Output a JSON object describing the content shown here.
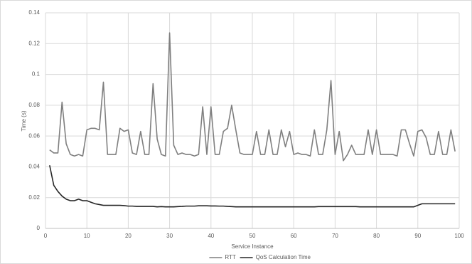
{
  "chart_data": {
    "type": "line",
    "x_label": "Service Instance",
    "y_label": "Time (s)",
    "x": [
      1,
      2,
      3,
      4,
      5,
      6,
      7,
      8,
      9,
      10,
      11,
      12,
      13,
      14,
      15,
      16,
      17,
      18,
      19,
      20,
      21,
      22,
      23,
      24,
      25,
      26,
      27,
      28,
      29,
      30,
      31,
      32,
      33,
      34,
      35,
      36,
      37,
      38,
      39,
      40,
      41,
      42,
      43,
      44,
      45,
      46,
      47,
      48,
      49,
      50,
      51,
      52,
      53,
      54,
      55,
      56,
      57,
      58,
      59,
      60,
      61,
      62,
      63,
      64,
      65,
      66,
      67,
      68,
      69,
      70,
      71,
      72,
      73,
      74,
      75,
      76,
      77,
      78,
      79,
      80,
      81,
      82,
      83,
      84,
      85,
      86,
      87,
      88,
      89,
      90,
      91,
      92,
      93,
      94,
      95,
      96,
      97,
      98,
      99
    ],
    "series": [
      {
        "name": "RTT",
        "color": "#7f7f7f",
        "values": [
          0.051,
          0.049,
          0.049,
          0.082,
          0.055,
          0.048,
          0.047,
          0.048,
          0.047,
          0.064,
          0.065,
          0.065,
          0.064,
          0.095,
          0.048,
          0.048,
          0.048,
          0.065,
          0.063,
          0.064,
          0.049,
          0.048,
          0.063,
          0.048,
          0.048,
          0.094,
          0.058,
          0.048,
          0.047,
          0.127,
          0.054,
          0.048,
          0.049,
          0.048,
          0.048,
          0.047,
          0.048,
          0.079,
          0.048,
          0.079,
          0.048,
          0.048,
          0.063,
          0.065,
          0.08,
          0.064,
          0.049,
          0.048,
          0.048,
          0.048,
          0.063,
          0.048,
          0.048,
          0.064,
          0.048,
          0.048,
          0.064,
          0.053,
          0.063,
          0.048,
          0.049,
          0.048,
          0.048,
          0.047,
          0.064,
          0.048,
          0.048,
          0.064,
          0.096,
          0.048,
          0.063,
          0.044,
          0.048,
          0.054,
          0.048,
          0.048,
          0.048,
          0.064,
          0.048,
          0.064,
          0.048,
          0.048,
          0.048,
          0.048,
          0.047,
          0.064,
          0.064,
          0.055,
          0.047,
          0.063,
          0.064,
          0.059,
          0.048,
          0.048,
          0.063,
          0.048,
          0.048,
          0.064,
          0.05
        ]
      },
      {
        "name": "QoS Calculation Time",
        "color": "#262626",
        "values": [
          0.041,
          0.028,
          0.024,
          0.021,
          0.019,
          0.018,
          0.018,
          0.019,
          0.018,
          0.018,
          0.017,
          0.016,
          0.0155,
          0.015,
          0.015,
          0.015,
          0.015,
          0.015,
          0.0148,
          0.0145,
          0.0145,
          0.0143,
          0.0143,
          0.0143,
          0.0143,
          0.0143,
          0.014,
          0.0142,
          0.014,
          0.014,
          0.014,
          0.0142,
          0.0143,
          0.0145,
          0.0145,
          0.0145,
          0.0147,
          0.0147,
          0.0147,
          0.0146,
          0.0146,
          0.0145,
          0.0145,
          0.0143,
          0.0142,
          0.014,
          0.014,
          0.014,
          0.014,
          0.014,
          0.014,
          0.014,
          0.014,
          0.014,
          0.014,
          0.014,
          0.014,
          0.014,
          0.014,
          0.014,
          0.014,
          0.014,
          0.014,
          0.014,
          0.014,
          0.0142,
          0.0142,
          0.0142,
          0.0142,
          0.0142,
          0.0142,
          0.0142,
          0.0142,
          0.0142,
          0.0142,
          0.014,
          0.014,
          0.014,
          0.014,
          0.014,
          0.014,
          0.014,
          0.014,
          0.014,
          0.014,
          0.014,
          0.014,
          0.014,
          0.014,
          0.015,
          0.016,
          0.016,
          0.016,
          0.016,
          0.016,
          0.016,
          0.016,
          0.016,
          0.016
        ]
      }
    ],
    "xlim": [
      0,
      100
    ],
    "xticks": [
      0,
      10,
      20,
      30,
      40,
      50,
      60,
      70,
      80,
      90,
      100
    ],
    "ylim": [
      0,
      0.14
    ],
    "yticks": [
      0,
      0.02,
      0.04,
      0.06,
      0.08,
      0.1,
      0.12,
      0.14
    ],
    "grid": true,
    "legend": "bottom"
  }
}
